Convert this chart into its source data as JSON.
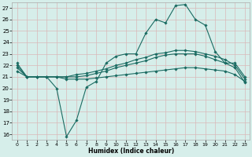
{
  "xlabel": "Humidex (Indice chaleur)",
  "bg_color": "#d6eeea",
  "line_color": "#1a6b62",
  "grid_color": "#d9b8b8",
  "xlim": [
    -0.5,
    23.5
  ],
  "ylim": [
    15.5,
    27.5
  ],
  "yticks": [
    16,
    17,
    18,
    19,
    20,
    21,
    22,
    23,
    24,
    25,
    26,
    27
  ],
  "xticks": [
    0,
    1,
    2,
    3,
    4,
    5,
    6,
    7,
    8,
    9,
    10,
    11,
    12,
    13,
    14,
    15,
    16,
    17,
    18,
    19,
    20,
    21,
    22,
    23
  ],
  "line1": [
    22.2,
    21.0,
    21.0,
    21.0,
    20.0,
    15.8,
    17.2,
    20.1,
    20.6,
    22.2,
    22.8,
    23.0,
    23.0,
    24.8,
    26.0,
    25.7,
    27.2,
    27.3,
    26.0,
    25.5,
    23.2,
    22.2,
    22.2,
    21.0
  ],
  "line2": [
    22.0,
    21.0,
    21.0,
    21.0,
    21.0,
    21.0,
    21.2,
    21.3,
    21.5,
    21.7,
    22.0,
    22.2,
    22.5,
    22.7,
    23.0,
    23.1,
    23.3,
    23.3,
    23.2,
    23.0,
    22.8,
    22.5,
    22.0,
    20.8
  ],
  "line3": [
    21.8,
    21.0,
    21.0,
    21.0,
    21.0,
    21.0,
    21.0,
    21.1,
    21.3,
    21.5,
    21.8,
    22.0,
    22.2,
    22.4,
    22.7,
    22.9,
    23.0,
    23.0,
    23.0,
    22.8,
    22.5,
    22.2,
    21.8,
    20.5
  ],
  "line4": [
    21.5,
    21.0,
    21.0,
    21.0,
    21.0,
    20.8,
    20.8,
    20.8,
    20.9,
    21.0,
    21.1,
    21.2,
    21.3,
    21.4,
    21.5,
    21.6,
    21.7,
    21.8,
    21.8,
    21.7,
    21.6,
    21.5,
    21.2,
    20.6
  ]
}
